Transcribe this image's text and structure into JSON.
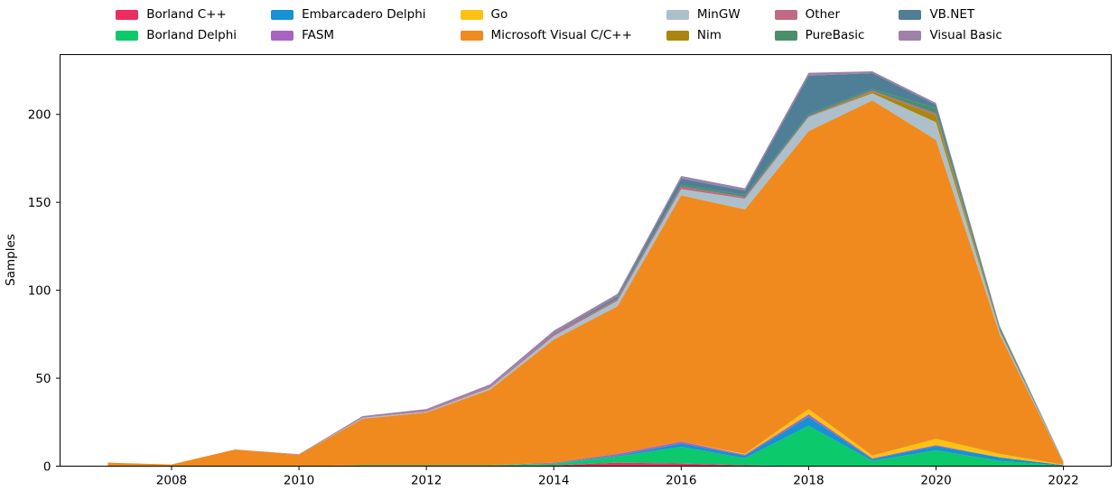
{
  "figure": {
    "background": "#ffffff"
  },
  "chart_data": {
    "type": "area",
    "stacked": true,
    "title": "",
    "xlabel": "",
    "ylabel": "Samples",
    "grid": false,
    "legend_position": "top",
    "legend_columns": 6,
    "xlim": [
      2006.25,
      2022.75
    ],
    "ylim": [
      0,
      234
    ],
    "xticks": [
      2008,
      2010,
      2012,
      2014,
      2016,
      2018,
      2020,
      2022
    ],
    "yticks": [
      0,
      50,
      100,
      150,
      200
    ],
    "x": [
      2007,
      2008,
      2009,
      2010,
      2011,
      2012,
      2013,
      2014,
      2015,
      2016,
      2017,
      2018,
      2019,
      2020,
      2021,
      2022
    ],
    "series": [
      {
        "name": "Borland C++",
        "color": "#ED2C5F",
        "values": [
          0,
          0,
          0,
          0,
          0,
          0,
          0,
          0.5,
          2,
          1.5,
          0.5,
          0,
          0,
          0,
          0,
          0
        ]
      },
      {
        "name": "Borland Delphi",
        "color": "#0CC96B",
        "values": [
          0,
          0,
          0,
          0,
          0.5,
          0.5,
          0.5,
          1,
          3.5,
          9.5,
          4,
          23,
          3,
          9,
          3,
          0.3
        ]
      },
      {
        "name": "Embarcadero Delphi",
        "color": "#1691D6",
        "values": [
          0,
          0,
          0,
          0,
          0,
          0,
          0,
          0,
          0.5,
          2,
          1.5,
          5,
          1,
          2.5,
          2,
          0.3
        ]
      },
      {
        "name": "FASM",
        "color": "#A763BF",
        "values": [
          0,
          0,
          0,
          0,
          0,
          0,
          0,
          0.5,
          1,
          1,
          0.5,
          1.5,
          0.5,
          0.5,
          0,
          0
        ]
      },
      {
        "name": "Go",
        "color": "#FCC212",
        "values": [
          0,
          0,
          0,
          0,
          0,
          0,
          0,
          0,
          0,
          0,
          0.5,
          3,
          1.5,
          3.5,
          2,
          0.2
        ]
      },
      {
        "name": "Microsoft Visual C/C++",
        "color": "#F08A1E",
        "values": [
          2,
          1,
          9.5,
          6.5,
          26.5,
          30,
          43,
          70,
          84,
          140,
          139,
          158,
          202,
          170,
          68,
          1
        ]
      },
      {
        "name": "MinGW",
        "color": "#ABC0CB",
        "values": [
          0,
          0,
          0,
          0,
          0.5,
          0.5,
          1,
          2,
          3,
          3.5,
          6,
          8,
          4,
          10,
          1.5,
          0.2
        ]
      },
      {
        "name": "Nim",
        "color": "#A9860E",
        "values": [
          0,
          0,
          0,
          0,
          0,
          0,
          0,
          0,
          0,
          0,
          0,
          0,
          1,
          4,
          0.5,
          0
        ]
      },
      {
        "name": "Other",
        "color": "#BF6B83",
        "values": [
          0,
          0,
          0,
          0,
          0,
          0.5,
          0.5,
          1,
          1,
          1.5,
          1,
          0.5,
          0.5,
          1,
          0.3,
          0
        ]
      },
      {
        "name": "PureBasic",
        "color": "#4B8E6C",
        "values": [
          0,
          0,
          0,
          0,
          0,
          0,
          0,
          0,
          0.5,
          1,
          1.2,
          1,
          1,
          3,
          1,
          0.2
        ]
      },
      {
        "name": "VB.NET",
        "color": "#4E7F96",
        "values": [
          0,
          0,
          0,
          0,
          0,
          0,
          0,
          0.5,
          1,
          3.5,
          2.4,
          22,
          9,
          2,
          1,
          0.2
        ]
      },
      {
        "name": "Visual Basic",
        "color": "#9D81A9",
        "values": [
          0,
          0,
          0,
          0.3,
          1,
          1,
          1.5,
          1.5,
          1.5,
          1.5,
          1.4,
          1.7,
          1,
          1,
          0.5,
          0.2
        ]
      }
    ]
  }
}
